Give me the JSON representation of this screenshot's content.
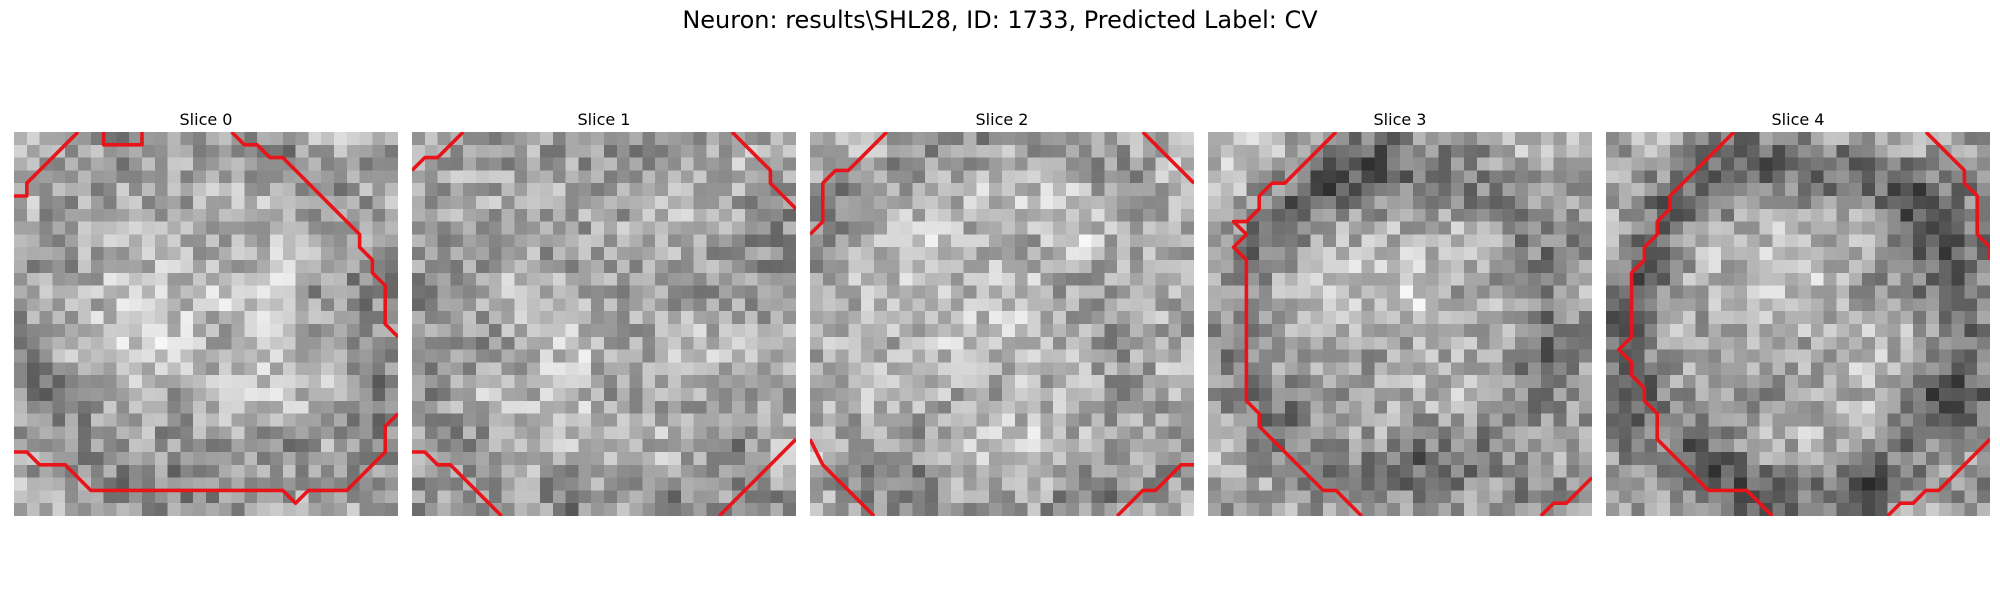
{
  "figure": {
    "title": "Neuron: results\\SHL28, ID: 1733, Predicted Label: CV"
  },
  "slices": [
    {
      "label": "Slice 0"
    },
    {
      "label": "Slice 1"
    },
    {
      "label": "Slice 2"
    },
    {
      "label": "Slice 3"
    },
    {
      "label": "Slice 4"
    }
  ],
  "contour_color": "#e8141a",
  "colormap": "grayscale"
}
